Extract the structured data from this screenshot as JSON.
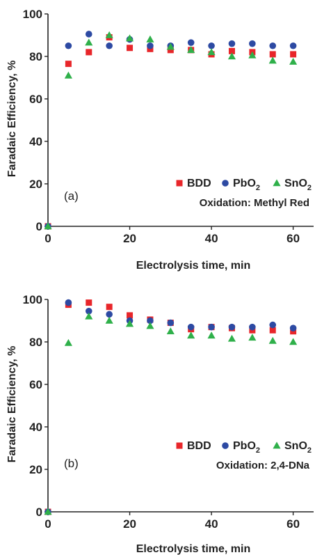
{
  "chart_data": [
    {
      "type": "scatter",
      "panel_label": "(a)",
      "annotation": "Oxidation: Methyl  Red",
      "xlabel": "Electrolysis time, min",
      "ylabel": "Faradaic Efficiency, %",
      "xlim": [
        0,
        65
      ],
      "ylim": [
        0,
        100
      ],
      "xticks": [
        0,
        20,
        40,
        60
      ],
      "yticks": [
        0,
        20,
        40,
        60,
        80,
        100
      ],
      "grid": false,
      "legend_position": "bottom-right",
      "series": [
        {
          "name": "BDD",
          "base": "BDD",
          "sub": "",
          "marker": "square",
          "color": "#e8262a",
          "points": [
            [
              0,
              0
            ],
            [
              5,
              76.5
            ],
            [
              10,
              82
            ],
            [
              15,
              89
            ],
            [
              20,
              84
            ],
            [
              25,
              83.5
            ],
            [
              30,
              83
            ],
            [
              35,
              83
            ],
            [
              40,
              81
            ],
            [
              45,
              82.5
            ],
            [
              50,
              82
            ],
            [
              55,
              81
            ],
            [
              60,
              81
            ]
          ]
        },
        {
          "name": "PbO2",
          "base": "PbO",
          "sub": "2",
          "marker": "circle",
          "color": "#2d4aa3",
          "points": [
            [
              0,
              0
            ],
            [
              5,
              85
            ],
            [
              10,
              90.5
            ],
            [
              15,
              85
            ],
            [
              20,
              88
            ],
            [
              25,
              85
            ],
            [
              30,
              85
            ],
            [
              35,
              86.5
            ],
            [
              40,
              85
            ],
            [
              45,
              86
            ],
            [
              50,
              86
            ],
            [
              55,
              85
            ],
            [
              60,
              85
            ]
          ]
        },
        {
          "name": "SnO2",
          "base": "SnO",
          "sub": "2",
          "marker": "triangle",
          "color": "#2fb04a",
          "points": [
            [
              0,
              0
            ],
            [
              5,
              71
            ],
            [
              10,
              86.5
            ],
            [
              15,
              90
            ],
            [
              20,
              88.5
            ],
            [
              25,
              88
            ],
            [
              30,
              84.5
            ],
            [
              35,
              83
            ],
            [
              40,
              82
            ],
            [
              45,
              80
            ],
            [
              50,
              80.5
            ],
            [
              55,
              78
            ],
            [
              60,
              77.5
            ]
          ]
        }
      ]
    },
    {
      "type": "scatter",
      "panel_label": "(b)",
      "annotation": "Oxidation: 2,4-DNa",
      "xlabel": "Electrolysis time, min",
      "ylabel": "Faradaic Efficiency, %",
      "xlim": [
        0,
        65
      ],
      "ylim": [
        0,
        100
      ],
      "xticks": [
        0,
        20,
        40,
        60
      ],
      "yticks": [
        0,
        20,
        40,
        60,
        80,
        100
      ],
      "grid": false,
      "legend_position": "bottom-right",
      "series": [
        {
          "name": "BDD",
          "base": "BDD",
          "sub": "",
          "marker": "square",
          "color": "#e8262a",
          "points": [
            [
              0,
              0
            ],
            [
              5,
              97.5
            ],
            [
              10,
              98.5
            ],
            [
              15,
              96.5
            ],
            [
              20,
              92.5
            ],
            [
              25,
              90.5
            ],
            [
              30,
              89
            ],
            [
              35,
              86
            ],
            [
              40,
              87
            ],
            [
              45,
              86.5
            ],
            [
              50,
              85.5
            ],
            [
              55,
              85.5
            ],
            [
              60,
              85
            ]
          ]
        },
        {
          "name": "PbO2",
          "base": "PbO",
          "sub": "2",
          "marker": "circle",
          "color": "#2d4aa3",
          "points": [
            [
              0,
              0
            ],
            [
              5,
              98.5
            ],
            [
              10,
              94.5
            ],
            [
              15,
              93
            ],
            [
              20,
              90
            ],
            [
              25,
              90
            ],
            [
              30,
              89
            ],
            [
              35,
              87
            ],
            [
              40,
              87
            ],
            [
              45,
              87
            ],
            [
              50,
              87
            ],
            [
              55,
              88
            ],
            [
              60,
              86.5
            ]
          ]
        },
        {
          "name": "SnO2",
          "base": "SnO",
          "sub": "2",
          "marker": "triangle",
          "color": "#2fb04a",
          "points": [
            [
              0,
              0
            ],
            [
              5,
              79.5
            ],
            [
              10,
              92
            ],
            [
              15,
              90
            ],
            [
              20,
              88.5
            ],
            [
              25,
              87.5
            ],
            [
              30,
              85
            ],
            [
              35,
              83
            ],
            [
              40,
              83
            ],
            [
              45,
              81.5
            ],
            [
              50,
              82
            ],
            [
              55,
              80.5
            ],
            [
              60,
              80
            ]
          ]
        }
      ]
    }
  ]
}
